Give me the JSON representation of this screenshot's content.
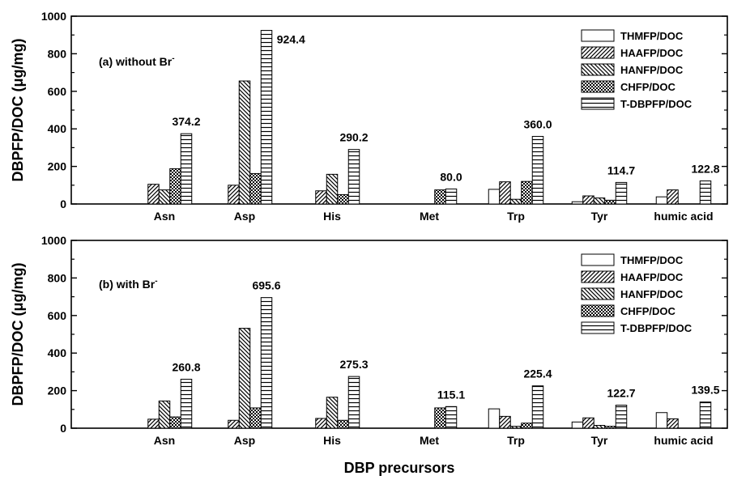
{
  "figure": {
    "ylabel": "DBPFP/DOC  (μg/mg)",
    "xlabel": "DBP precursors"
  },
  "chart_data": [
    {
      "type": "bar",
      "panel_label": "(a) without Br",
      "panel_sup": "-",
      "categories": [
        "Asn",
        "Asp",
        "His",
        "Met",
        "Trp",
        "Tyr",
        "humic acid"
      ],
      "ylim": [
        0,
        1000
      ],
      "yticks": [
        "0",
        "200",
        "400",
        "600",
        "800",
        "1000"
      ],
      "ylabel": "DBPFP/DOC  (μg/mg)",
      "legend_position": "top-right",
      "series": [
        {
          "name": "THMFP/DOC",
          "pattern": "blank",
          "values": [
            0,
            0,
            0,
            0,
            78,
            12,
            38
          ]
        },
        {
          "name": "HAAFP/DOC",
          "pattern": "diag-right",
          "values": [
            105,
            100,
            70,
            0,
            118,
            43,
            75
          ]
        },
        {
          "name": "HANFP/DOC",
          "pattern": "diag-left",
          "values": [
            75,
            655,
            158,
            0,
            25,
            32,
            0
          ]
        },
        {
          "name": "CHFP/DOC",
          "pattern": "checker",
          "values": [
            188,
            162,
            50,
            75,
            120,
            20,
            0
          ]
        },
        {
          "name": "T-DBPFP/DOC",
          "pattern": "horizontal",
          "values": [
            374.2,
            924.4,
            290.2,
            80.0,
            360.0,
            114.7,
            122.8
          ]
        }
      ],
      "total_labels": [
        "374.2",
        "924.4",
        "290.2",
        "80.0",
        "360.0",
        "114.7",
        "122.8"
      ]
    },
    {
      "type": "bar",
      "panel_label": "(b) with Br",
      "panel_sup": "-",
      "categories": [
        "Asn",
        "Asp",
        "His",
        "Met",
        "Trp",
        "Tyr",
        "humic acid"
      ],
      "ylim": [
        0,
        1000
      ],
      "yticks": [
        "0",
        "200",
        "400",
        "600",
        "800",
        "1000"
      ],
      "ylabel": "DBPFP/DOC  (μg/mg)",
      "xlabel": "DBP precursors",
      "legend_position": "top-right",
      "series": [
        {
          "name": "THMFP/DOC",
          "pattern": "blank",
          "values": [
            0,
            0,
            0,
            0,
            103,
            33,
            83
          ]
        },
        {
          "name": "HAAFP/DOC",
          "pattern": "diag-right",
          "values": [
            48,
            42,
            52,
            0,
            63,
            55,
            50
          ]
        },
        {
          "name": "HANFP/DOC",
          "pattern": "diag-left",
          "values": [
            145,
            532,
            165,
            0,
            10,
            15,
            0
          ]
        },
        {
          "name": "CHFP/DOC",
          "pattern": "checker",
          "values": [
            60,
            108,
            42,
            108,
            27,
            10,
            0
          ]
        },
        {
          "name": "T-DBPFP/DOC",
          "pattern": "horizontal",
          "values": [
            260.8,
            695.6,
            275.3,
            115.1,
            225.4,
            122.7,
            139.5
          ]
        }
      ],
      "total_labels": [
        "260.8",
        "695.6",
        "275.3",
        "115.1",
        "225.4",
        "122.7",
        "139.5"
      ]
    }
  ]
}
